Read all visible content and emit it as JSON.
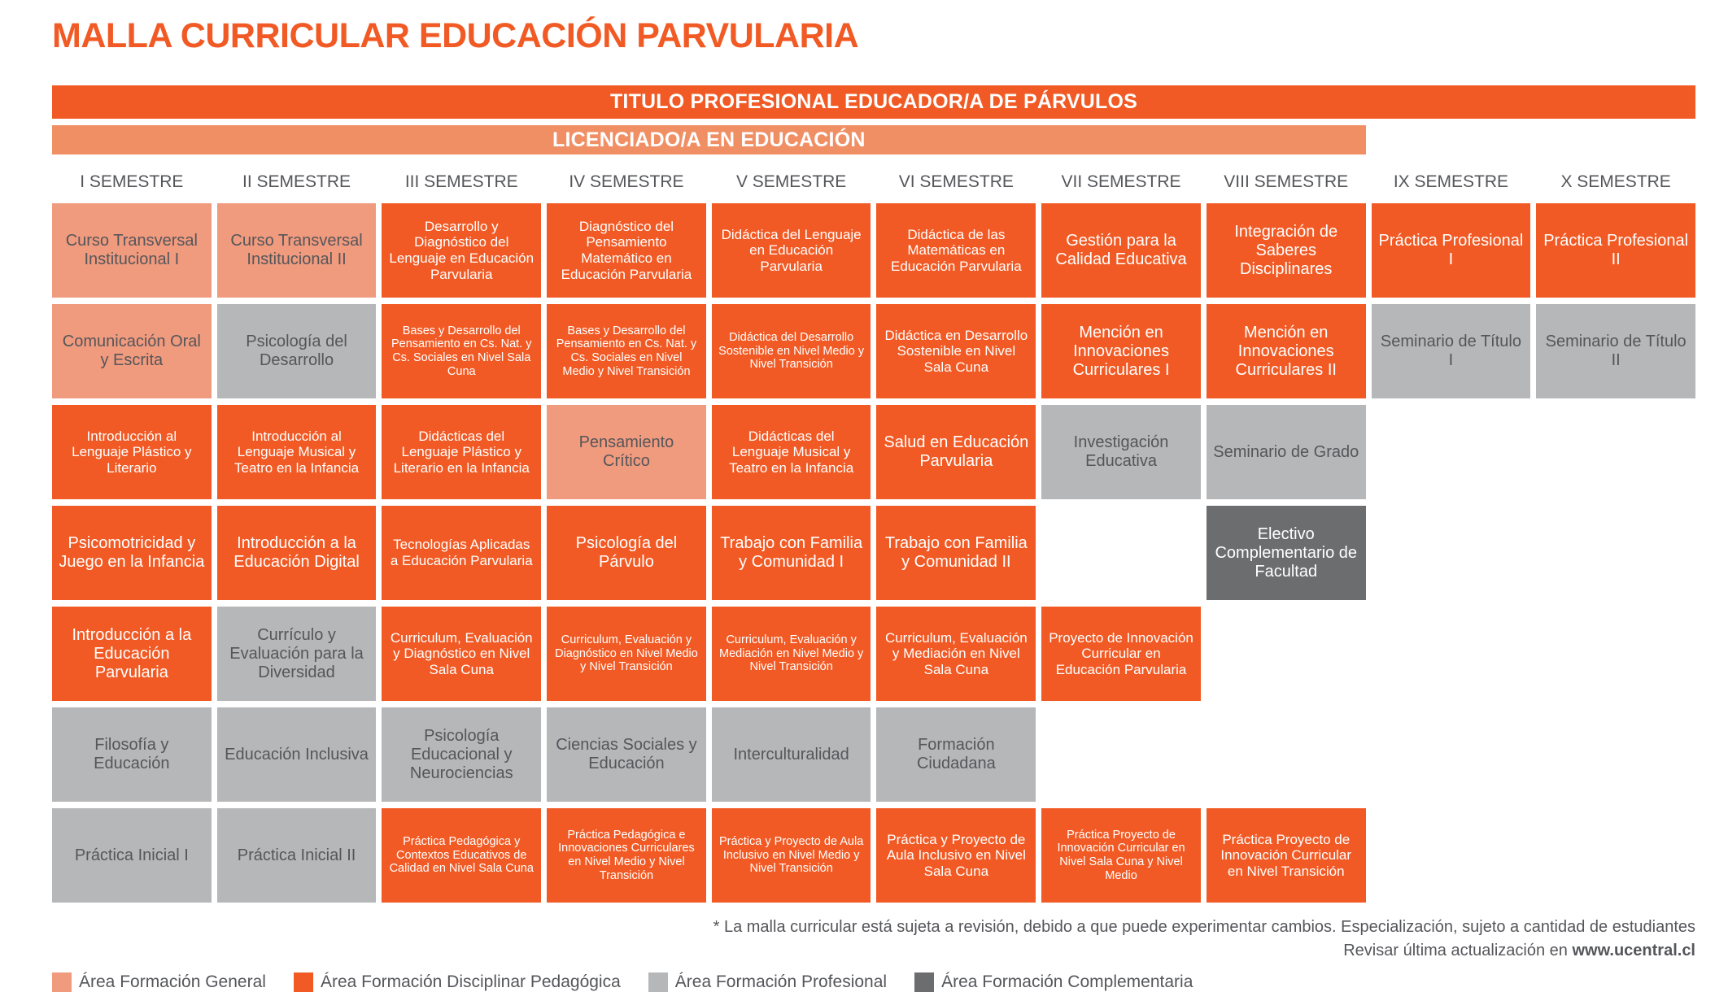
{
  "page_title": "MALLA CURRICULAR EDUCACIÓN PARVULARIA",
  "title_color": "#F15A24",
  "banners": {
    "titulo": {
      "text": "TITULO PROFESIONAL EDUCADOR/A DE PÁRVULOS",
      "bg": "#F15A24"
    },
    "licenciado": {
      "text": "LICENCIADO/A EN EDUCACIÓN",
      "bg": "#F18F64"
    }
  },
  "semesters": [
    "I SEMESTRE",
    "II SEMESTRE",
    "III SEMESTRE",
    "IV SEMESTRE",
    "V SEMESTRE",
    "VI SEMESTRE",
    "VII SEMESTRE",
    "VIII SEMESTRE",
    "IX SEMESTRE",
    "X SEMESTRE"
  ],
  "areas": {
    "general": {
      "bg": "#F09A7E",
      "fg": "#55565A"
    },
    "disciplinar": {
      "bg": "#F15A24",
      "fg": "#FFFFFF"
    },
    "profesional": {
      "bg": "#B5B7B9",
      "fg": "#55565A"
    },
    "complementaria": {
      "bg": "#6C6D6F",
      "fg": "#FFFFFF"
    }
  },
  "legend": [
    {
      "key": "general",
      "label": "Área Formación General"
    },
    {
      "key": "disciplinar",
      "label": "Área Formación Disciplinar Pedagógica"
    },
    {
      "key": "profesional",
      "label": "Área Formación Profesional"
    },
    {
      "key": "complementaria",
      "label": "Área Formación Complementaria"
    }
  ],
  "courses": [
    {
      "row": 1,
      "col": 1,
      "area": "general",
      "name": "Curso Transversal Institucional I"
    },
    {
      "row": 1,
      "col": 2,
      "area": "general",
      "name": "Curso Transversal Institucional II"
    },
    {
      "row": 1,
      "col": 3,
      "area": "disciplinar",
      "name": "Desarrollo y Diagnóstico del Lenguaje en Educación Parvularia"
    },
    {
      "row": 1,
      "col": 4,
      "area": "disciplinar",
      "name": "Diagnóstico del Pensamiento Matemático en Educación Parvularia"
    },
    {
      "row": 1,
      "col": 5,
      "area": "disciplinar",
      "name": "Didáctica del Lenguaje en Educación Parvularia"
    },
    {
      "row": 1,
      "col": 6,
      "area": "disciplinar",
      "name": "Didáctica de las Matemáticas en Educación Parvularia"
    },
    {
      "row": 1,
      "col": 7,
      "area": "disciplinar",
      "name": "Gestión para la Calidad Educativa"
    },
    {
      "row": 1,
      "col": 8,
      "area": "disciplinar",
      "name": "Integración de Saberes Disciplinares"
    },
    {
      "row": 1,
      "col": 9,
      "area": "disciplinar",
      "name": "Práctica Profesional I"
    },
    {
      "row": 1,
      "col": 10,
      "area": "disciplinar",
      "name": "Práctica Profesional II"
    },
    {
      "row": 2,
      "col": 1,
      "area": "general",
      "name": "Comunicación Oral y Escrita"
    },
    {
      "row": 2,
      "col": 2,
      "area": "profesional",
      "name": "Psicología del Desarrollo"
    },
    {
      "row": 2,
      "col": 3,
      "area": "disciplinar",
      "name": "Bases y Desarrollo del Pensamiento en Cs. Nat. y Cs. Sociales en Nivel Sala Cuna"
    },
    {
      "row": 2,
      "col": 4,
      "area": "disciplinar",
      "name": "Bases y Desarrollo del Pensamiento en Cs. Nat. y Cs. Sociales en Nivel Medio y Nivel Transición"
    },
    {
      "row": 2,
      "col": 5,
      "area": "disciplinar",
      "name": "Didáctica del Desarrollo Sostenible en Nivel Medio y Nivel Transición"
    },
    {
      "row": 2,
      "col": 6,
      "area": "disciplinar",
      "name": "Didáctica en Desarrollo Sostenible en Nivel Sala Cuna"
    },
    {
      "row": 2,
      "col": 7,
      "area": "disciplinar",
      "name": "Mención en Innovaciones Curriculares I"
    },
    {
      "row": 2,
      "col": 8,
      "area": "disciplinar",
      "name": "Mención en Innovaciones Curriculares II"
    },
    {
      "row": 2,
      "col": 9,
      "area": "profesional",
      "name": "Seminario de Título I"
    },
    {
      "row": 2,
      "col": 10,
      "area": "profesional",
      "name": "Seminario de Título II"
    },
    {
      "row": 3,
      "col": 1,
      "area": "disciplinar",
      "name": "Introducción al Lenguaje Plástico y Literario"
    },
    {
      "row": 3,
      "col": 2,
      "area": "disciplinar",
      "name": "Introducción al Lenguaje Musical y Teatro en la Infancia"
    },
    {
      "row": 3,
      "col": 3,
      "area": "disciplinar",
      "name": "Didácticas del Lenguaje Plástico y Literario en la Infancia"
    },
    {
      "row": 3,
      "col": 4,
      "area": "general",
      "name": "Pensamiento Crítico"
    },
    {
      "row": 3,
      "col": 5,
      "area": "disciplinar",
      "name": "Didácticas del Lenguaje Musical y Teatro en la Infancia"
    },
    {
      "row": 3,
      "col": 6,
      "area": "disciplinar",
      "name": "Salud en Educación Parvularia"
    },
    {
      "row": 3,
      "col": 7,
      "area": "profesional",
      "name": "Investigación Educativa"
    },
    {
      "row": 3,
      "col": 8,
      "area": "profesional",
      "name": "Seminario de Grado"
    },
    {
      "row": 4,
      "col": 1,
      "area": "disciplinar",
      "name": "Psicomotricidad y Juego en la Infancia"
    },
    {
      "row": 4,
      "col": 2,
      "area": "disciplinar",
      "name": "Introducción a la Educación Digital"
    },
    {
      "row": 4,
      "col": 3,
      "area": "disciplinar",
      "name": "Tecnologías Aplicadas a Educación Parvularia"
    },
    {
      "row": 4,
      "col": 4,
      "area": "disciplinar",
      "name": "Psicología del Párvulo"
    },
    {
      "row": 4,
      "col": 5,
      "area": "disciplinar",
      "name": "Trabajo con Familia y Comunidad I"
    },
    {
      "row": 4,
      "col": 6,
      "area": "disciplinar",
      "name": "Trabajo con Familia y Comunidad II"
    },
    {
      "row": 4,
      "col": 8,
      "area": "complementaria",
      "name": "Electivo Complementario de Facultad"
    },
    {
      "row": 5,
      "col": 1,
      "area": "disciplinar",
      "name": "Introducción a la Educación Parvularia"
    },
    {
      "row": 5,
      "col": 2,
      "area": "profesional",
      "name": "Currículo y Evaluación para la Diversidad"
    },
    {
      "row": 5,
      "col": 3,
      "area": "disciplinar",
      "name": "Curriculum, Evaluación y Diagnóstico en Nivel Sala Cuna"
    },
    {
      "row": 5,
      "col": 4,
      "area": "disciplinar",
      "name": "Curriculum, Evaluación y Diagnóstico en Nivel Medio y Nivel Transición"
    },
    {
      "row": 5,
      "col": 5,
      "area": "disciplinar",
      "name": "Curriculum, Evaluación y Mediación en Nivel Medio y Nivel Transición"
    },
    {
      "row": 5,
      "col": 6,
      "area": "disciplinar",
      "name": "Curriculum, Evaluación y Mediación en Nivel Sala Cuna"
    },
    {
      "row": 5,
      "col": 7,
      "area": "disciplinar",
      "name": "Proyecto de Innovación Curricular en Educación Parvularia"
    },
    {
      "row": 6,
      "col": 1,
      "area": "profesional",
      "name": "Filosofía y Educación"
    },
    {
      "row": 6,
      "col": 2,
      "area": "profesional",
      "name": "Educación Inclusiva"
    },
    {
      "row": 6,
      "col": 3,
      "area": "profesional",
      "name": "Psicología Educacional y Neurociencias"
    },
    {
      "row": 6,
      "col": 4,
      "area": "profesional",
      "name": "Ciencias Sociales y Educación"
    },
    {
      "row": 6,
      "col": 5,
      "area": "profesional",
      "name": "Interculturalidad"
    },
    {
      "row": 6,
      "col": 6,
      "area": "profesional",
      "name": "Formación Ciudadana"
    },
    {
      "row": 7,
      "col": 1,
      "area": "profesional",
      "name": "Práctica Inicial I"
    },
    {
      "row": 7,
      "col": 2,
      "area": "profesional",
      "name": "Práctica Inicial II"
    },
    {
      "row": 7,
      "col": 3,
      "area": "disciplinar",
      "name": "Práctica Pedagógica y Contextos Educativos de Calidad en Nivel Sala Cuna"
    },
    {
      "row": 7,
      "col": 4,
      "area": "disciplinar",
      "name": "Práctica Pedagógica e Innovaciones Curriculares en Nivel Medio y Nivel Transición"
    },
    {
      "row": 7,
      "col": 5,
      "area": "disciplinar",
      "name": "Práctica y Proyecto de Aula Inclusivo en Nivel Medio y Nivel Transición"
    },
    {
      "row": 7,
      "col": 6,
      "area": "disciplinar",
      "name": "Práctica y Proyecto de Aula Inclusivo en Nivel Sala Cuna"
    },
    {
      "row": 7,
      "col": 7,
      "area": "disciplinar",
      "name": "Práctica Proyecto de Innovación Curricular en Nivel Sala Cuna y Nivel Medio"
    },
    {
      "row": 7,
      "col": 8,
      "area": "disciplinar",
      "name": "Práctica Proyecto de Innovación Curricular en Nivel Transición"
    }
  ],
  "footnote": {
    "line1": "* La malla curricular está sujeta a revisión, debido a que puede experimentar cambios. Especialización, sujeto a cantidad de estudiantes",
    "line2_prefix": "Revisar última actualización en ",
    "line2_bold": "www.ucentral.cl"
  }
}
